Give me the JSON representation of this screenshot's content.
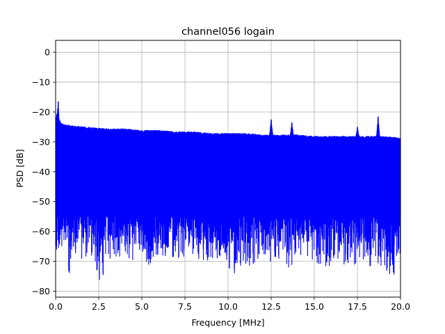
{
  "chart_data": {
    "type": "line",
    "title": "channel056 logain",
    "xlabel": "Frequency [MHz]",
    "ylabel": "PSD [dB]",
    "xlim": [
      0,
      20
    ],
    "ylim": [
      -82,
      4
    ],
    "xticks": [
      0,
      2.5,
      5,
      7.5,
      10,
      12.5,
      15,
      17.5,
      20
    ],
    "xtick_labels": [
      "0.0",
      "2.5",
      "5.0",
      "7.5",
      "10.0",
      "12.5",
      "15.0",
      "17.5",
      "20.0"
    ],
    "yticks": [
      0,
      -10,
      -20,
      -30,
      -40,
      -50,
      -60,
      -70,
      -80
    ],
    "ytick_labels": [
      "0",
      "−10",
      "−20",
      "−30",
      "−40",
      "−50",
      "−60",
      "−70",
      "−80"
    ],
    "grid": true,
    "series": [
      {
        "color": "#0000ff",
        "upper_envelope": {
          "x": [
            0,
            0.1,
            0.15,
            0.2,
            0.3,
            0.5,
            1.0,
            2.0,
            3.0,
            4.0,
            5.0,
            6.0,
            7.0,
            8.0,
            9.0,
            10.0,
            11.0,
            12.0,
            12.4,
            12.5,
            12.6,
            13.0,
            13.6,
            13.7,
            13.8,
            14.0,
            15.0,
            16.0,
            17.0,
            17.4,
            17.5,
            17.6,
            18.0,
            18.6,
            18.7,
            18.8,
            19.0,
            20.0
          ],
          "y": [
            -22,
            -20,
            -16.5,
            -22,
            -23.5,
            -24,
            -24.5,
            -25,
            -25.5,
            -25.5,
            -26,
            -26,
            -26.5,
            -26.5,
            -27,
            -27,
            -27,
            -27.5,
            -27.5,
            -22.5,
            -27.5,
            -27.5,
            -27.5,
            -23.5,
            -27.5,
            -27.5,
            -28,
            -28,
            -28,
            -28,
            -25,
            -28,
            -28,
            -28,
            -21.5,
            -28,
            -28,
            -28.5
          ]
        },
        "lower_envelope": {
          "x": [
            0,
            0.3,
            0.5,
            0.8,
            1.0,
            1.6,
            2.0,
            2.6,
            2.7,
            3.0,
            4.0,
            4.3,
            5.0,
            5.3,
            6.0,
            7.0,
            8.0,
            9.0,
            10.0,
            10.2,
            11.0,
            11.1,
            12.0,
            13.0,
            13.5,
            14.0,
            15.0,
            16.0,
            17.0,
            18.0,
            18.8,
            19.0,
            19.6,
            20.0
          ],
          "y": [
            -65,
            -71,
            -66,
            -75,
            -67,
            -70,
            -67,
            -77.5,
            -78,
            -70,
            -68,
            -72,
            -68,
            -75,
            -68,
            -69,
            -69,
            -70,
            -72,
            -75.5,
            -70,
            -76,
            -71,
            -70,
            -76,
            -71,
            -71,
            -72,
            -71,
            -72,
            -73,
            -72,
            -76,
            -70
          ]
        },
        "band_floor": -55,
        "band_ceiling": -30,
        "spikes": [
          {
            "x": 0.15,
            "y": -16.5
          },
          {
            "x": 12.5,
            "y": -22.5
          },
          {
            "x": 13.7,
            "y": -23.5
          },
          {
            "x": 17.5,
            "y": -25
          },
          {
            "x": 18.7,
            "y": -21.5
          }
        ]
      }
    ]
  }
}
